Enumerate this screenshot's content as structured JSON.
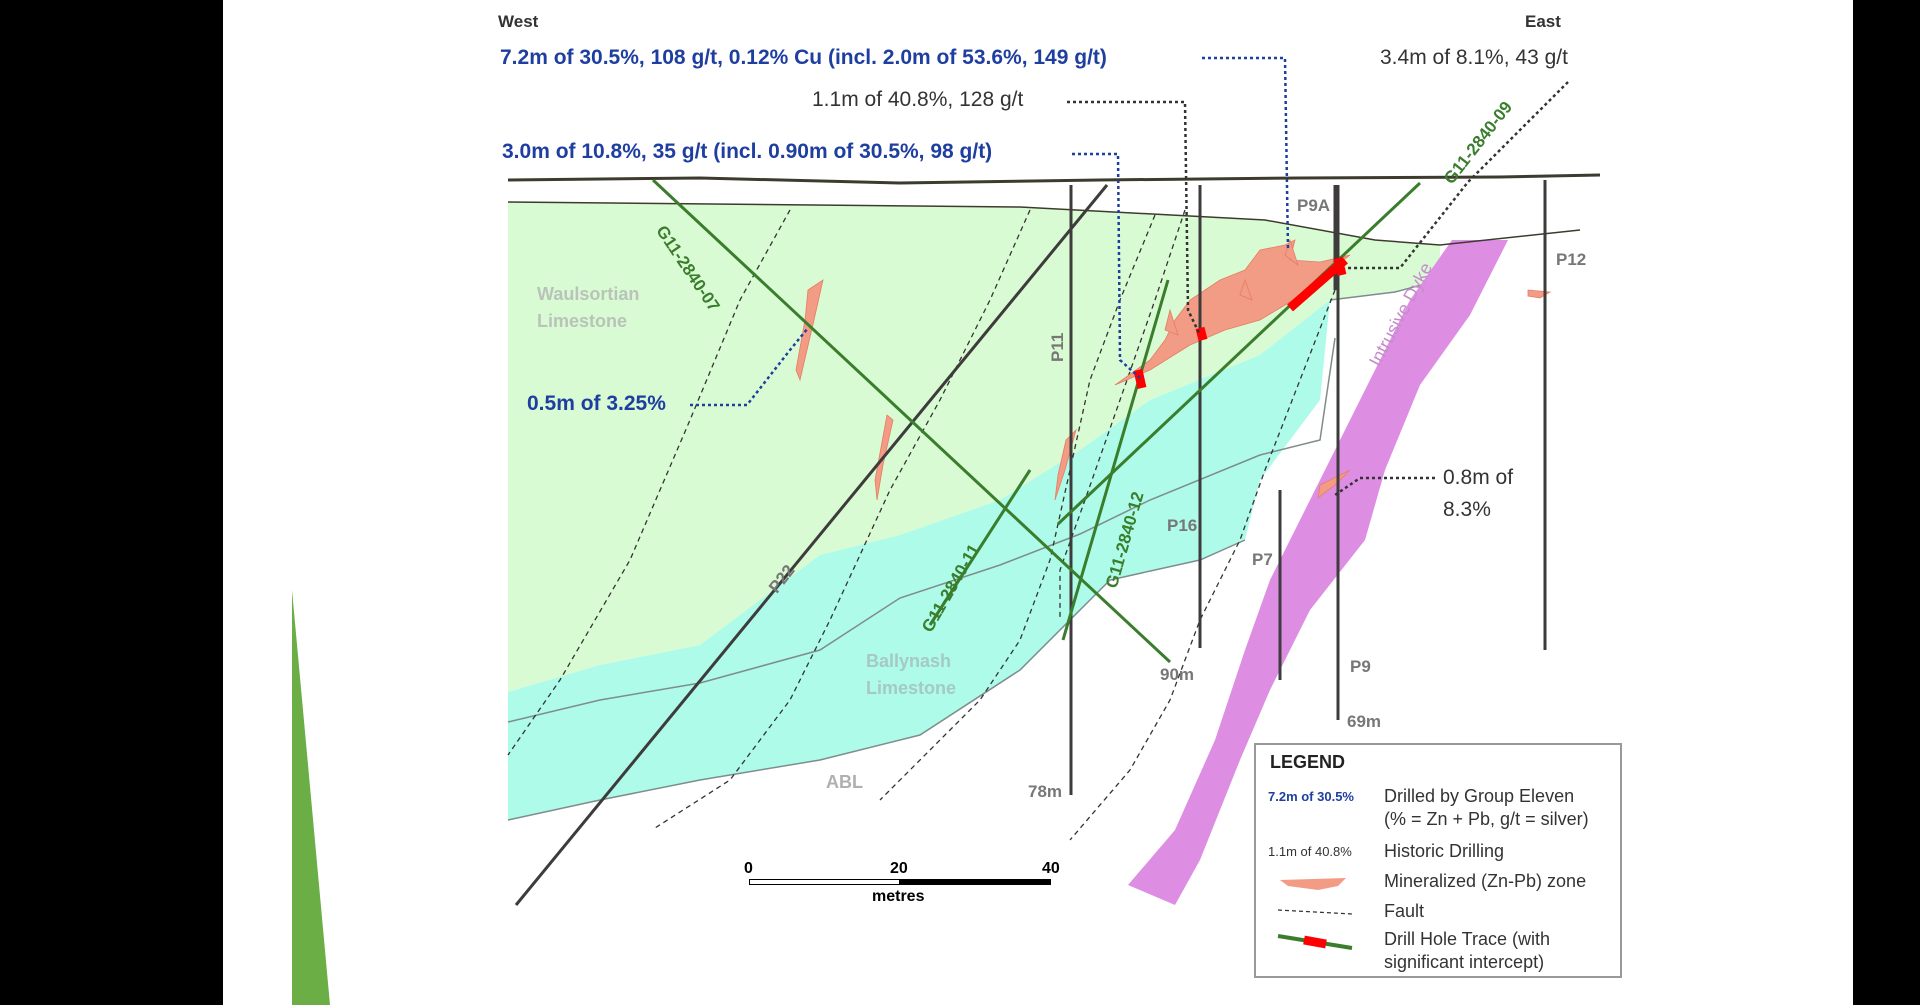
{
  "directions": {
    "west": "West",
    "east": "East"
  },
  "callouts": {
    "main_intercept": "7.2m of 30.5%, 108 g/t, 0.12% Cu (incl. 2.0m of 53.6%, 149 g/t)",
    "historic_1": "1.1m of 40.8%, 128 g/t",
    "east_intercept": "3.4m of 8.1%, 43 g/t",
    "intercept_2": "3.0m of 10.8%, 35 g/t (incl. 0.90m of 30.5%, 98 g/t)",
    "intercept_3": "0.5m of 3.25%",
    "dyke_intercept_line1": "0.8m of",
    "dyke_intercept_line2": "8.3%"
  },
  "units": {
    "waulsortian_line1": "Waulsortian",
    "waulsortian_line2": "Limestone",
    "ballynash_line1": "Ballynash",
    "ballynash_line2": "Limestone",
    "abl": "ABL",
    "dyke": "Intrusive Dyke"
  },
  "holes": {
    "g07": "G11-2840-07",
    "g09": "G11-2840-09",
    "g11": "G11-2840-11",
    "g12": "G11-2840-12",
    "p22": "P22",
    "p11": "P11",
    "p16": "P16",
    "p7": "P7",
    "p9": "P9",
    "p9a": "P9A",
    "p12": "P12"
  },
  "depths": {
    "p11": "78m",
    "g07": "90m",
    "p9": "69m"
  },
  "scale": {
    "t0": "0",
    "t20": "20",
    "t40": "40",
    "unit": "metres"
  },
  "legend": {
    "title": "LEGEND",
    "ge_key": "7.2m of 30.5%",
    "ge_text1": "Drilled by Group Eleven",
    "ge_text2": "(% = Zn + Pb, g/t = silver)",
    "hist_key": "1.1m of 40.8%",
    "hist_text": "Historic Drilling",
    "min_text": "Mineralized (Zn-Pb) zone",
    "fault_text": "Fault",
    "trace_text1": "Drill Hole Trace (with",
    "trace_text2": "significant intercept)"
  },
  "colors": {
    "waulsortian": "#d9fbd3",
    "ballynash": "#adfbe8",
    "dyke": "#dd8ee3",
    "mineralized": "#f29b85",
    "intercept": "#ff0000",
    "ge_hole": "#3a7d2c",
    "ge_text": "#1f3fa0",
    "accent_green": "#6aae45"
  }
}
